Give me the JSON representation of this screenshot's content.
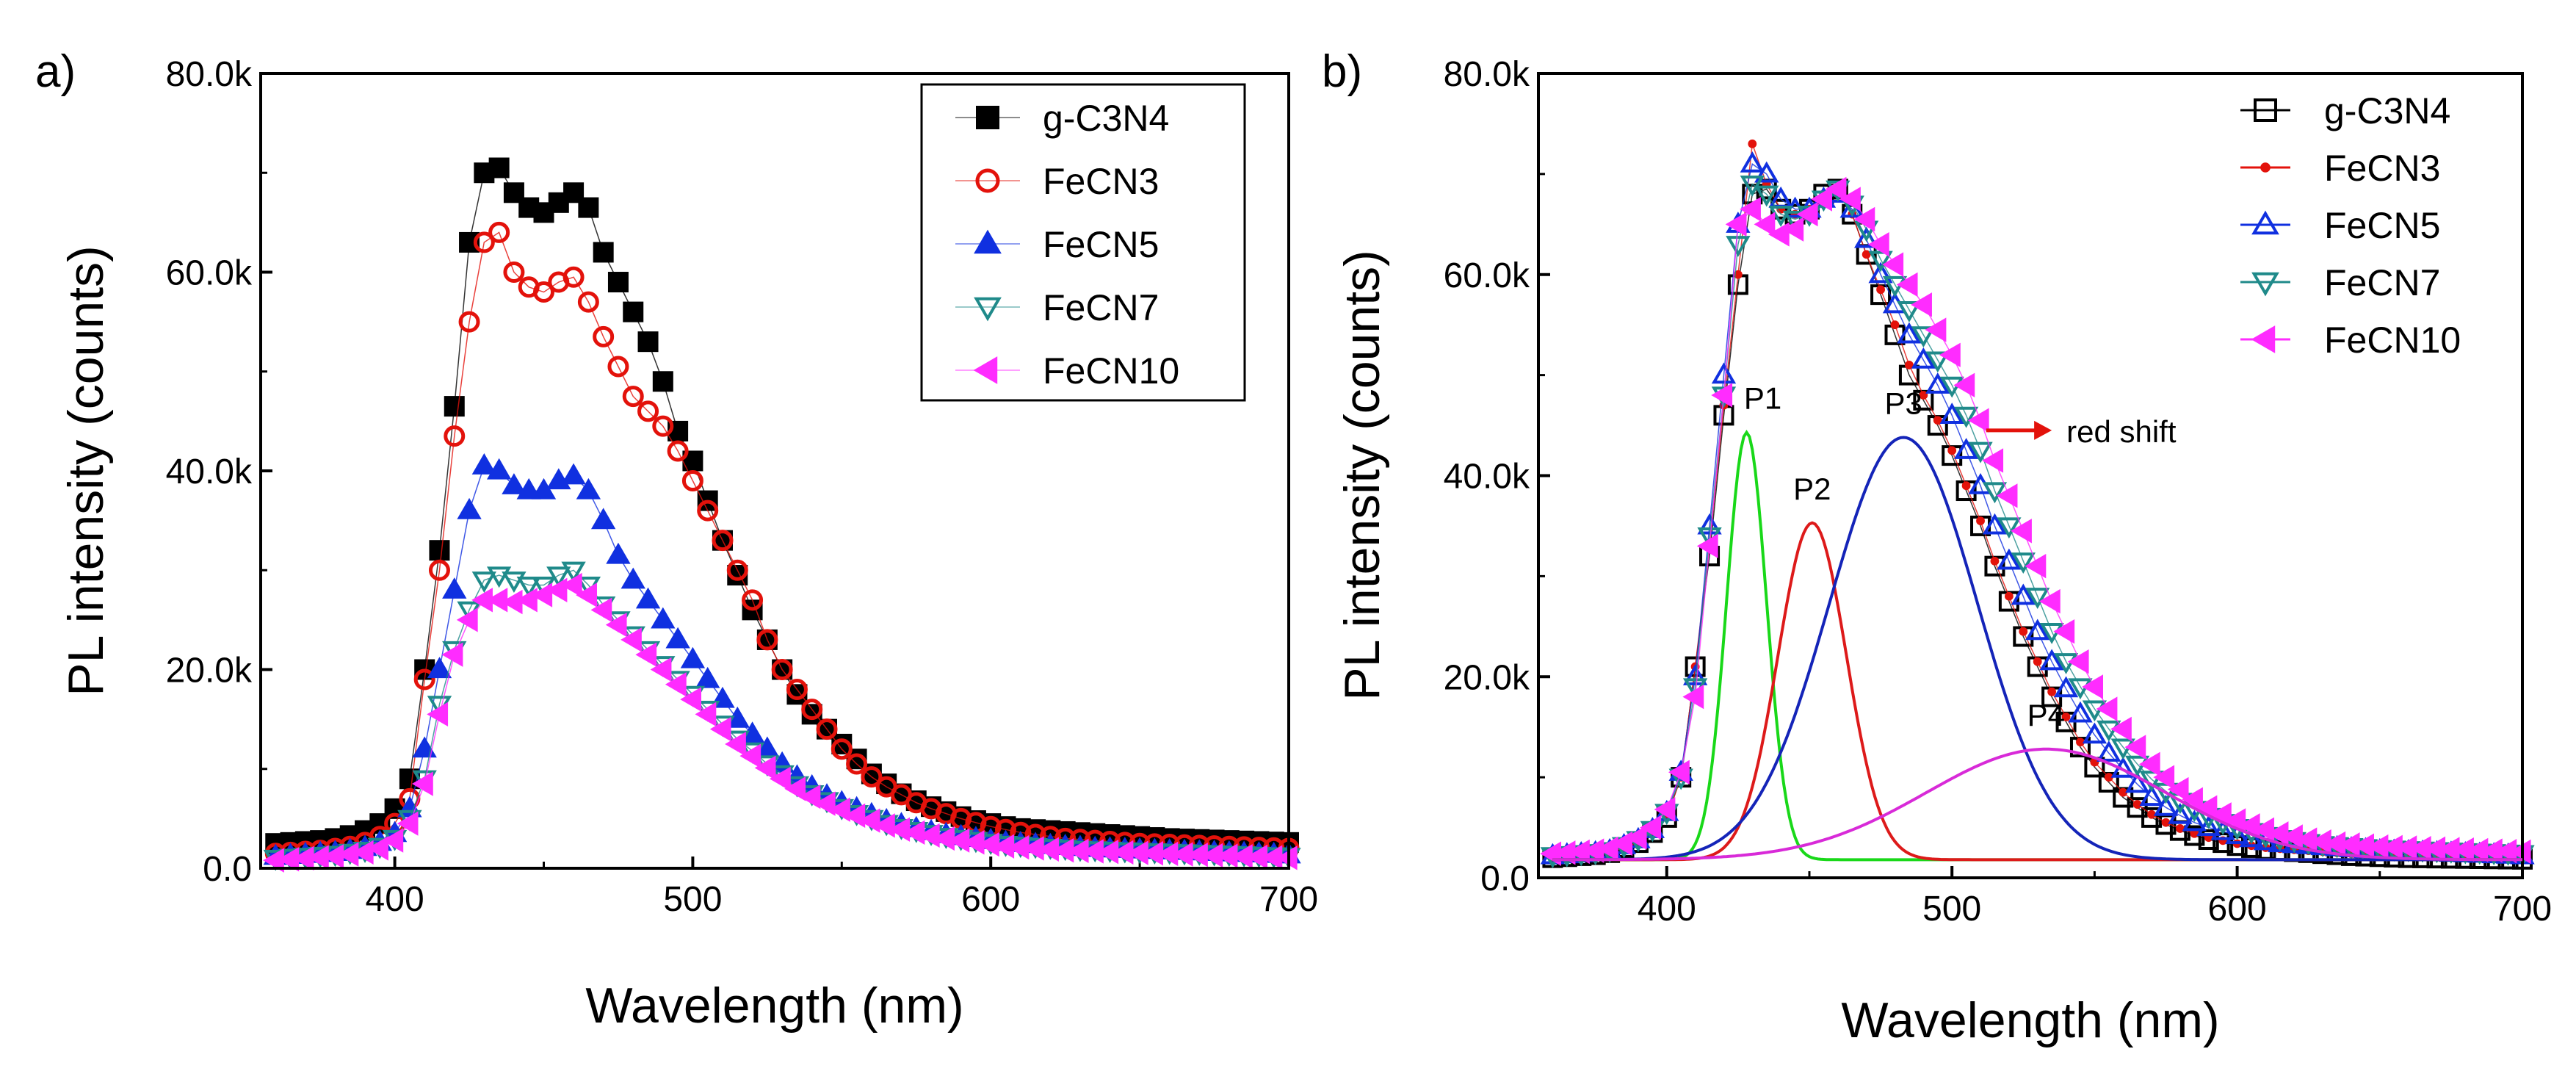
{
  "series_styles": [
    {
      "marker": "square",
      "color": "#000000",
      "fill": "filled"
    },
    {
      "marker": "circle",
      "color": "#e3120b",
      "fill": "open"
    },
    {
      "marker": "triangle-up",
      "color": "#1030e0",
      "fill": "filled"
    },
    {
      "marker": "triangle-down",
      "color": "#1f8a8a",
      "fill": "open"
    },
    {
      "marker": "triangle-left",
      "color": "#ff2cff",
      "fill": "filled"
    }
  ],
  "series_styles_b": [
    {
      "marker": "square",
      "color": "#000000",
      "fill": "open"
    },
    {
      "marker": "dot",
      "color": "#e3120b",
      "fill": "filled"
    },
    {
      "marker": "triangle-up",
      "color": "#1030e0",
      "fill": "open"
    },
    {
      "marker": "triangle-down",
      "color": "#1f8a8a",
      "fill": "open"
    },
    {
      "marker": "triangle-left",
      "color": "#ff2cff",
      "fill": "filled"
    }
  ],
  "chart_data": [
    {
      "type": "scatter",
      "panel_label": "a)",
      "xlabel": "Wavelength (nm)",
      "ylabel": "PL intensity (counts)",
      "xlim": [
        355,
        700
      ],
      "ylim": [
        0,
        80000
      ],
      "xticks": [
        400,
        500,
        600,
        700
      ],
      "xtick_labels": [
        "400",
        "500",
        "600",
        "700"
      ],
      "yticks": [
        0,
        20000,
        40000,
        60000,
        80000
      ],
      "ytick_labels": [
        "0.0",
        "20.0k",
        "40.0k",
        "60.0k",
        "80.0k"
      ],
      "legend_position": "top-right",
      "x": [
        360,
        365,
        370,
        375,
        380,
        385,
        390,
        395,
        400,
        405,
        410,
        415,
        420,
        425,
        430,
        435,
        440,
        445,
        450,
        455,
        460,
        465,
        470,
        475,
        480,
        485,
        490,
        495,
        500,
        505,
        510,
        515,
        520,
        525,
        530,
        535,
        540,
        545,
        550,
        555,
        560,
        565,
        570,
        575,
        580,
        585,
        590,
        595,
        600,
        605,
        610,
        615,
        620,
        625,
        630,
        635,
        640,
        645,
        650,
        655,
        660,
        665,
        670,
        675,
        680,
        685,
        690,
        695,
        700
      ],
      "series": [
        {
          "name": "g-C3N4",
          "values": [
            2500,
            2600,
            2700,
            2800,
            3000,
            3300,
            3800,
            4500,
            6000,
            9000,
            20000,
            32000,
            46500,
            63000,
            70000,
            70500,
            68000,
            66500,
            66000,
            67000,
            68000,
            66500,
            62000,
            59000,
            56000,
            53000,
            49000,
            44000,
            41000,
            37000,
            33000,
            29500,
            26000,
            23000,
            20000,
            17500,
            15500,
            14000,
            12500,
            11000,
            9500,
            8500,
            7500,
            6800,
            6200,
            5700,
            5200,
            4800,
            4500,
            4200,
            4000,
            3900,
            3800,
            3700,
            3600,
            3500,
            3400,
            3300,
            3200,
            3100,
            3000,
            2950,
            2900,
            2850,
            2800,
            2750,
            2700,
            2650,
            2600
          ]
        },
        {
          "name": "FeCN3",
          "values": [
            1500,
            1600,
            1700,
            1800,
            2000,
            2200,
            2600,
            3200,
            4500,
            7000,
            19000,
            30000,
            43500,
            55000,
            63000,
            64000,
            60000,
            58500,
            58000,
            59000,
            59500,
            57000,
            53500,
            50500,
            47500,
            46000,
            44500,
            42000,
            39000,
            36000,
            33000,
            30000,
            27000,
            23000,
            20000,
            18000,
            16000,
            14000,
            12000,
            10500,
            9200,
            8200,
            7400,
            6600,
            6000,
            5500,
            5000,
            4600,
            4200,
            3900,
            3600,
            3400,
            3200,
            3000,
            2900,
            2800,
            2700,
            2600,
            2500,
            2450,
            2400,
            2350,
            2300,
            2250,
            2200,
            2150,
            2100,
            2050,
            2000
          ]
        },
        {
          "name": "FeCN5",
          "values": [
            1200,
            1300,
            1400,
            1500,
            1600,
            1800,
            2100,
            2600,
            3500,
            6000,
            12000,
            20000,
            28000,
            36000,
            40500,
            40000,
            38500,
            38000,
            38000,
            39000,
            39500,
            38000,
            35000,
            31500,
            29000,
            27000,
            25000,
            23000,
            21000,
            19000,
            17000,
            15000,
            13500,
            12000,
            10500,
            9200,
            8200,
            7300,
            6600,
            6000,
            5400,
            4800,
            4400,
            4000,
            3700,
            3400,
            3200,
            3000,
            2800,
            2600,
            2500,
            2400,
            2300,
            2200,
            2100,
            2000,
            1950,
            1900,
            1850,
            1800,
            1750,
            1700,
            1650,
            1600,
            1550,
            1500,
            1450,
            1400,
            1350
          ]
        },
        {
          "name": "FeCN7",
          "values": [
            1000,
            1100,
            1200,
            1300,
            1400,
            1600,
            1800,
            2200,
            3000,
            5000,
            9000,
            16500,
            22000,
            26000,
            29000,
            29500,
            29000,
            28500,
            28500,
            29500,
            30000,
            28500,
            26500,
            25000,
            23500,
            22000,
            20500,
            19000,
            17500,
            16000,
            14500,
            13000,
            11800,
            10500,
            9500,
            8400,
            7500,
            6800,
            6100,
            5500,
            5000,
            4500,
            4100,
            3800,
            3500,
            3200,
            3000,
            2800,
            2600,
            2400,
            2300,
            2200,
            2100,
            2000,
            1900,
            1850,
            1800,
            1750,
            1700,
            1650,
            1600,
            1550,
            1500,
            1450,
            1400,
            1350,
            1300,
            1250,
            1200
          ]
        },
        {
          "name": "FeCN10",
          "values": [
            800,
            900,
            1000,
            1100,
            1200,
            1400,
            1600,
            2000,
            2800,
            4500,
            8500,
            15500,
            21500,
            25000,
            27000,
            27000,
            26800,
            27000,
            27500,
            28000,
            28500,
            27500,
            26000,
            24500,
            23000,
            21500,
            20000,
            18500,
            17000,
            15500,
            14000,
            12500,
            11300,
            10100,
            9000,
            8000,
            7200,
            6500,
            5900,
            5300,
            4800,
            4300,
            3900,
            3600,
            3300,
            3000,
            2800,
            2600,
            2400,
            2200,
            2100,
            2000,
            1900,
            1800,
            1750,
            1700,
            1650,
            1600,
            1550,
            1500,
            1450,
            1400,
            1350,
            1300,
            1250,
            1200,
            1150,
            1100,
            1050
          ]
        }
      ]
    },
    {
      "type": "scatter",
      "panel_label": "b)",
      "xlabel": "Wavelength (nm)",
      "ylabel": "PL intensity (counts)",
      "xlim": [
        355,
        700
      ],
      "ylim": [
        0,
        80000
      ],
      "xticks": [
        400,
        500,
        600,
        700
      ],
      "xtick_labels": [
        "400",
        "500",
        "600",
        "700"
      ],
      "yticks": [
        0,
        20000,
        40000,
        60000,
        80000
      ],
      "ytick_labels": [
        "0.0",
        "20.0k",
        "40.0k",
        "60.0k",
        "80.0k"
      ],
      "legend_position": "top-right",
      "x": [
        360,
        365,
        370,
        375,
        380,
        385,
        390,
        395,
        400,
        405,
        410,
        415,
        420,
        425,
        430,
        435,
        440,
        445,
        450,
        455,
        460,
        465,
        470,
        475,
        480,
        485,
        490,
        495,
        500,
        505,
        510,
        515,
        520,
        525,
        530,
        535,
        540,
        545,
        550,
        555,
        560,
        565,
        570,
        575,
        580,
        585,
        590,
        595,
        600,
        605,
        610,
        615,
        620,
        625,
        630,
        635,
        640,
        645,
        650,
        655,
        660,
        665,
        670,
        675,
        680,
        685,
        690,
        695,
        700
      ],
      "series": [
        {
          "name": "g-C3N4",
          "values": [
            2000,
            2100,
            2200,
            2300,
            2500,
            3000,
            3500,
            4500,
            6000,
            10000,
            21000,
            32000,
            46000,
            59000,
            68000,
            68500,
            66500,
            66000,
            66500,
            68000,
            68500,
            66000,
            62000,
            58000,
            54000,
            50000,
            47500,
            45000,
            42000,
            38500,
            35000,
            31000,
            27500,
            24000,
            21000,
            18000,
            15500,
            13000,
            11000,
            9500,
            8000,
            7000,
            6000,
            5300,
            4700,
            4200,
            3800,
            3500,
            3200,
            3000,
            2800,
            2700,
            2600,
            2500,
            2400,
            2300,
            2200,
            2150,
            2100,
            2050,
            2000,
            1980,
            1960,
            1940,
            1920,
            1900,
            1880,
            1860,
            1840
          ]
        },
        {
          "name": "FeCN3",
          "values": [
            2000,
            2100,
            2200,
            2300,
            2500,
            3000,
            3500,
            4500,
            6000,
            10000,
            21000,
            33000,
            47000,
            60000,
            73000,
            69000,
            66500,
            66000,
            66500,
            68000,
            68500,
            66000,
            62000,
            58500,
            55000,
            51000,
            48000,
            45500,
            42500,
            39000,
            35500,
            31500,
            28000,
            24500,
            21500,
            18500,
            16000,
            13500,
            11500,
            10000,
            8500,
            7300,
            6300,
            5500,
            4900,
            4400,
            4000,
            3700,
            3400,
            3200,
            3000,
            2900,
            2800,
            2700,
            2600,
            2500,
            2400,
            2350,
            2300,
            2250,
            2200,
            2180,
            2160,
            2140,
            2120,
            2100,
            2080,
            2060,
            2040
          ]
        },
        {
          "name": "FeCN5",
          "values": [
            2200,
            2300,
            2400,
            2500,
            2700,
            3200,
            3800,
            4800,
            6500,
            10500,
            20000,
            35000,
            50000,
            65000,
            71000,
            70000,
            67500,
            66500,
            66500,
            67500,
            68000,
            66500,
            63500,
            60000,
            57000,
            54000,
            51500,
            49000,
            46000,
            42500,
            39000,
            35000,
            31500,
            28000,
            24500,
            21500,
            18800,
            16300,
            14200,
            12400,
            10800,
            9300,
            8000,
            7000,
            6200,
            5500,
            5000,
            4600,
            4200,
            3900,
            3600,
            3400,
            3300,
            3200,
            3100,
            3000,
            2900,
            2800,
            2700,
            2650,
            2600,
            2550,
            2500,
            2450,
            2400,
            2350,
            2300,
            2250,
            2200
          ]
        },
        {
          "name": "FeCN7",
          "values": [
            2200,
            2300,
            2400,
            2500,
            2700,
            3200,
            3800,
            4800,
            6500,
            10000,
            19000,
            34000,
            48000,
            63000,
            69000,
            68000,
            66000,
            65500,
            66000,
            67500,
            68500,
            67000,
            64500,
            61500,
            59000,
            56500,
            54000,
            51500,
            49000,
            46000,
            42500,
            38500,
            35000,
            31500,
            28000,
            24500,
            21500,
            19000,
            16800,
            14800,
            13000,
            11300,
            9800,
            8600,
            7600,
            6800,
            6100,
            5500,
            5000,
            4600,
            4200,
            3900,
            3700,
            3500,
            3300,
            3200,
            3100,
            3000,
            2900,
            2850,
            2800,
            2750,
            2700,
            2650,
            2600,
            2550,
            2500,
            2450,
            2400
          ]
        },
        {
          "name": "FeCN10",
          "values": [
            2400,
            2500,
            2600,
            2700,
            2900,
            3400,
            4000,
            5000,
            6800,
            10500,
            18000,
            33000,
            48000,
            65000,
            66500,
            65000,
            64000,
            64500,
            66000,
            67500,
            68500,
            67500,
            65500,
            63000,
            61000,
            59000,
            57000,
            54500,
            52000,
            49000,
            45500,
            41500,
            38000,
            34500,
            31000,
            27500,
            24500,
            21500,
            19000,
            16800,
            14800,
            13000,
            11300,
            10000,
            8800,
            7800,
            7000,
            6300,
            5700,
            5200,
            4800,
            4400,
            4100,
            3800,
            3600,
            3400,
            3300,
            3200,
            3100,
            3050,
            3000,
            2950,
            2900,
            2850,
            2800,
            2750,
            2700,
            2650,
            2600
          ]
        }
      ],
      "fit_peaks": [
        {
          "name": "P1",
          "center": 428,
          "sigma": 7,
          "amplitude": 42500,
          "color": "#19d819"
        },
        {
          "name": "P2",
          "center": 451,
          "sigma": 12,
          "amplitude": 33500,
          "color": "#dd1a1a"
        },
        {
          "name": "P3",
          "center": 483,
          "sigma": 26,
          "amplitude": 42000,
          "color": "#1424b8"
        },
        {
          "name": "P4",
          "center": 533,
          "sigma": 42,
          "amplitude": 11000,
          "color": "#d82ad8"
        }
      ],
      "fit_baseline": 1800,
      "annotation": {
        "text": "red shift",
        "from": [
          512,
          44500
        ],
        "to": [
          535,
          44500
        ],
        "color": "#e3120b"
      }
    }
  ]
}
